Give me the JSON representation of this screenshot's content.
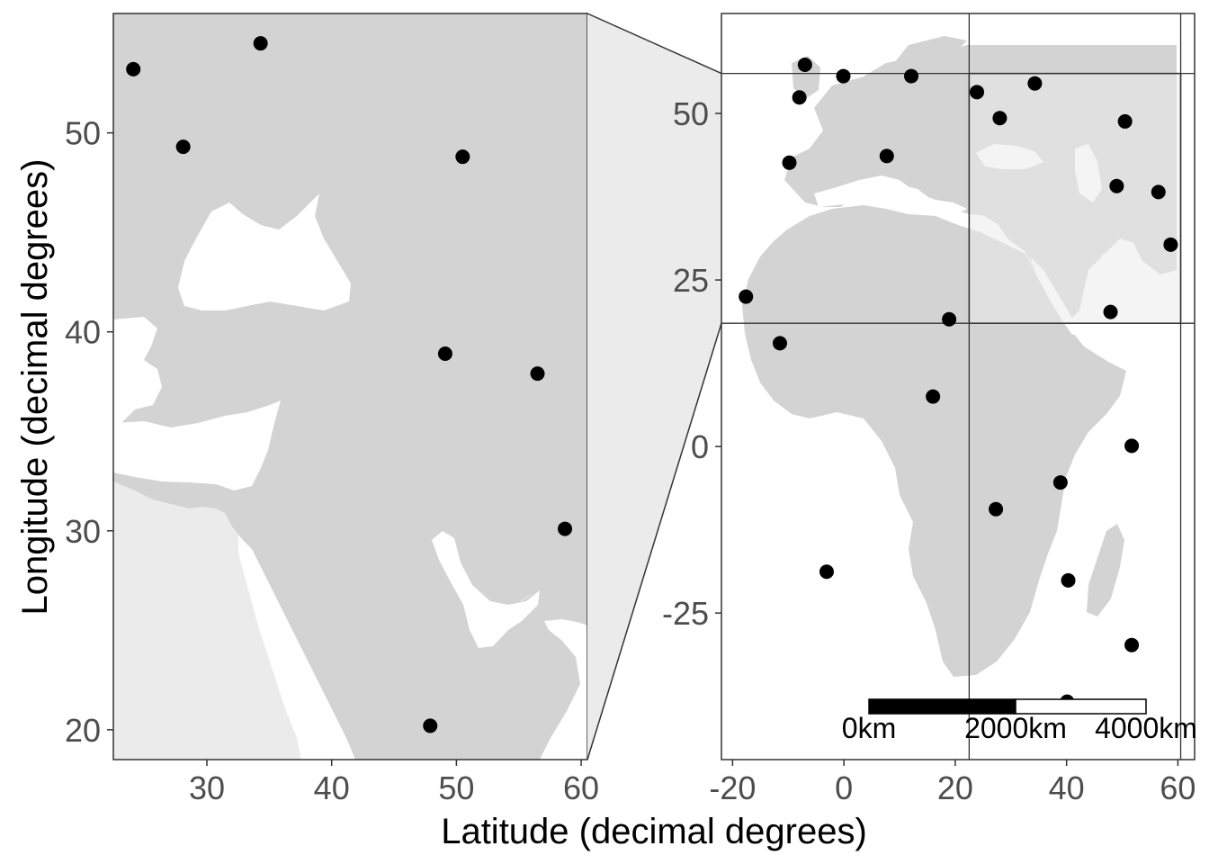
{
  "chart_data": {
    "type": "scatter",
    "xlabel": "Latitude (decimal degrees)",
    "ylabel": "Longitude (decimal degrees)",
    "colors": {
      "land": "#d3d3d3",
      "water": "#ffffff",
      "zoom_box": "#ebebeb",
      "point": "#000000",
      "frame": "#333333",
      "tick_text": "#4d4d4d"
    },
    "panels": [
      {
        "name": "inset-zoom",
        "xlim": [
          22.5,
          60.5
        ],
        "ylim": [
          18.5,
          56
        ],
        "x_ticks": [
          "30",
          "40",
          "50",
          "60"
        ],
        "x_tick_values": [
          30,
          40,
          50,
          60
        ],
        "y_ticks": [
          "20",
          "30",
          "40",
          "50"
        ],
        "y_tick_values": [
          20,
          30,
          40,
          50
        ],
        "points": [
          {
            "x": 24.1,
            "y": 53.2
          },
          {
            "x": 28.1,
            "y": 49.3
          },
          {
            "x": 34.3,
            "y": 54.5
          },
          {
            "x": 50.5,
            "y": 48.8
          },
          {
            "x": 49.1,
            "y": 38.9
          },
          {
            "x": 56.5,
            "y": 37.9
          },
          {
            "x": 58.7,
            "y": 30.1
          },
          {
            "x": 47.9,
            "y": 20.2
          }
        ]
      },
      {
        "name": "overview",
        "xlim": [
          -22,
          63
        ],
        "ylim": [
          -47,
          65
        ],
        "x_ticks": [
          "-20",
          "0",
          "20",
          "40",
          "60"
        ],
        "x_tick_values": [
          -20,
          0,
          20,
          40,
          60
        ],
        "y_ticks": [
          "-25",
          "0",
          "25",
          "50"
        ],
        "y_tick_values": [
          -25,
          0,
          25,
          50
        ],
        "highlight_box": {
          "xmin": 22.5,
          "xmax": 60.5,
          "ymin": 18.5,
          "ymax": 56
        },
        "points": [
          {
            "x": -7.0,
            "y": 57.3
          },
          {
            "x": -0.1,
            "y": 55.6
          },
          {
            "x": 12.1,
            "y": 55.6
          },
          {
            "x": -8.0,
            "y": 52.4
          },
          {
            "x": 23.9,
            "y": 53.2
          },
          {
            "x": 34.3,
            "y": 54.5
          },
          {
            "x": 28.0,
            "y": 49.3
          },
          {
            "x": 50.5,
            "y": 48.8
          },
          {
            "x": -9.8,
            "y": 42.6
          },
          {
            "x": 7.7,
            "y": 43.6
          },
          {
            "x": 49.0,
            "y": 39.1
          },
          {
            "x": 56.5,
            "y": 38.2
          },
          {
            "x": 58.7,
            "y": 30.3
          },
          {
            "x": -17.6,
            "y": 22.5
          },
          {
            "x": 18.9,
            "y": 19.1
          },
          {
            "x": 47.9,
            "y": 20.2
          },
          {
            "x": -11.5,
            "y": 15.5
          },
          {
            "x": 16.0,
            "y": 7.5
          },
          {
            "x": 51.7,
            "y": 0.1
          },
          {
            "x": 38.9,
            "y": -5.4
          },
          {
            "x": 27.3,
            "y": -9.4
          },
          {
            "x": -3.1,
            "y": -18.8
          },
          {
            "x": 40.3,
            "y": -20.1
          },
          {
            "x": 51.7,
            "y": -29.8
          },
          {
            "x": 40.1,
            "y": -38.3
          }
        ],
        "scale_bar": {
          "labels": [
            "0km",
            "2000km",
            "4000km"
          ]
        }
      }
    ]
  }
}
